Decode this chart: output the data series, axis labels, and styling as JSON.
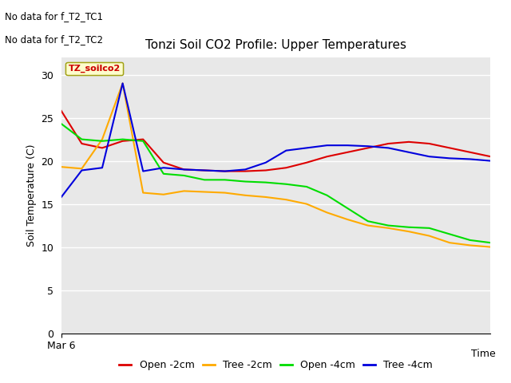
{
  "title": "Tonzi Soil CO2 Profile: Upper Temperatures",
  "xlabel": "Time",
  "ylabel": "Soil Temperature (C)",
  "ylim": [
    0,
    32
  ],
  "yticks": [
    0,
    5,
    10,
    15,
    20,
    25,
    30
  ],
  "xstart_label": "Mar 6",
  "annotation_lines": [
    "No data for f_T2_TC1",
    "No data for f_T2_TC2"
  ],
  "legend_label": "TZ_soilco2",
  "background_color": "#e8e8e8",
  "series": {
    "Open -2cm": {
      "color": "#dd0000",
      "y": [
        25.8,
        22.0,
        21.5,
        22.3,
        22.5,
        19.8,
        19.0,
        18.9,
        18.8,
        18.8,
        18.9,
        19.2,
        19.8,
        20.5,
        21.0,
        21.5,
        22.0,
        22.2,
        22.0,
        21.5,
        21.0,
        20.5
      ]
    },
    "Tree -2cm": {
      "color": "#ffaa00",
      "y": [
        19.3,
        19.1,
        22.5,
        29.0,
        16.3,
        16.1,
        16.5,
        16.4,
        16.3,
        16.0,
        15.8,
        15.5,
        15.0,
        14.0,
        13.2,
        12.5,
        12.2,
        11.8,
        11.3,
        10.5,
        10.2,
        10.0
      ]
    },
    "Open -4cm": {
      "color": "#00dd00",
      "y": [
        24.3,
        22.5,
        22.3,
        22.5,
        22.3,
        18.5,
        18.3,
        17.8,
        17.8,
        17.6,
        17.5,
        17.3,
        17.0,
        16.0,
        14.5,
        13.0,
        12.5,
        12.3,
        12.2,
        11.5,
        10.8,
        10.5
      ]
    },
    "Tree -4cm": {
      "color": "#0000dd",
      "y": [
        15.8,
        18.9,
        19.2,
        29.0,
        18.8,
        19.2,
        19.0,
        18.9,
        18.8,
        19.0,
        19.8,
        21.2,
        21.5,
        21.8,
        21.8,
        21.7,
        21.5,
        21.0,
        20.5,
        20.3,
        20.2,
        20.0
      ]
    }
  }
}
